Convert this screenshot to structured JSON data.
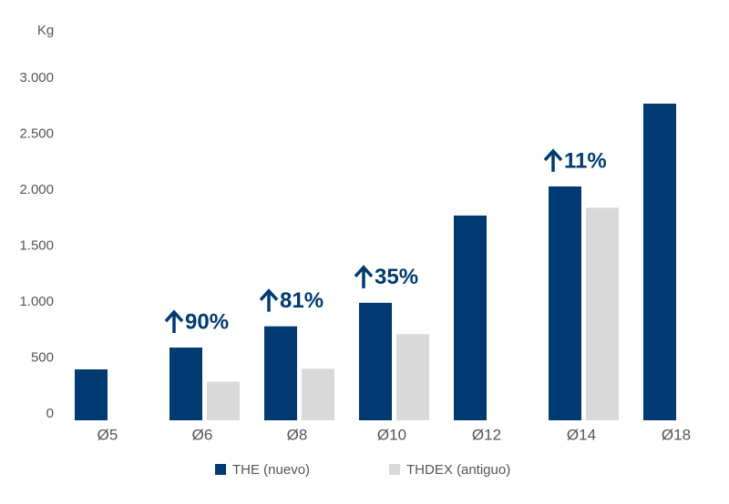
{
  "chart_data": {
    "type": "bar",
    "y_label": "Kg",
    "categories": [
      "Ø5",
      "Ø6",
      "Ø8",
      "Ø10",
      "Ø12",
      "Ø14",
      "Ø18"
    ],
    "series": [
      {
        "name": "THE (nuevo)",
        "color": "#003a70",
        "values": [
          455,
          650,
          840,
          1050,
          1830,
          2090,
          2830
        ]
      },
      {
        "name": "THDEX (antiguo)",
        "color": "#d9d9d9",
        "values": [
          null,
          345,
          460,
          770,
          null,
          1900,
          null
        ]
      }
    ],
    "annotations": [
      "90%",
      "81%",
      "35%",
      "11%"
    ],
    "annotation_color": "#003a70",
    "ylim": [
      0,
      3000
    ],
    "yticks": [
      0,
      500,
      {
        "value": 1000,
        "label": "1.000"
      },
      {
        "value": 1500,
        "label": "1.500"
      },
      {
        "value": 2000,
        "label": "2.000"
      },
      {
        "value": 2500,
        "label": "2.500"
      },
      {
        "value": 3000,
        "label": "3.000"
      }
    ],
    "grid": false
  }
}
